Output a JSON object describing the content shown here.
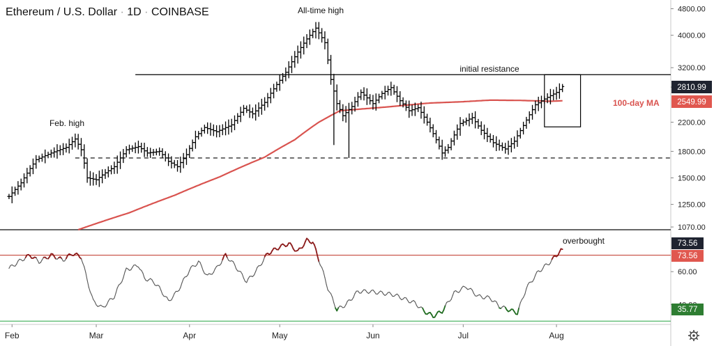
{
  "header": {
    "symbol": "Ethereum / U.S. Dollar",
    "interval": "1D",
    "exchange": "COINBASE"
  },
  "annotations": {
    "all_time_high": "All-time high",
    "feb_high": "Feb. high",
    "initial_resistance": "initial resistance",
    "ma_label": "100-day MA",
    "overbought": "overbought"
  },
  "colors": {
    "price_bars": "#000000",
    "ma_line": "#d9534f",
    "rsi_line": "#555555",
    "rsi_overbought_segment": "#8b1a1a",
    "rsi_oversold_segment": "#1f6b1f",
    "rsi_overbought_line": "#c0392b",
    "rsi_oversold_line": "#27a344",
    "last_price_tag": "#1f2330",
    "ma_tag": "#e0574f",
    "rsi_low_tag": "#2e7d32"
  },
  "settings_icon": "gear-icon",
  "chart_data": [
    {
      "type": "ohlc",
      "price_scale": "log",
      "y_ticks": [
        "4800.00",
        "4000.00",
        "3200.00",
        "2800.00",
        "2200.00",
        "1800.00",
        "1500.00",
        "1250.00",
        "1070.00"
      ],
      "y_tick_values": [
        4800,
        4000,
        3200,
        2800,
        2200,
        1800,
        1500,
        1250,
        1070
      ],
      "ylim": [
        1050,
        5000
      ],
      "x_ticks": [
        "Feb",
        "Mar",
        "Apr",
        "May",
        "Jun",
        "Jul",
        "Aug"
      ],
      "x_tick_days": [
        1,
        29,
        60,
        90,
        121,
        151,
        182
      ],
      "xlim": [
        -3,
        220
      ],
      "resistance_level": 3050,
      "support_level": 1720,
      "box": {
        "x_from": 178,
        "x_to": 190,
        "y_from": 2130,
        "y_to": 3050
      },
      "last_price": {
        "label": "2810.99",
        "value": 2810.99
      },
      "ma_value": {
        "label": "2549.99",
        "value": 2549.99
      },
      "price_anchors": [
        [
          0,
          1320
        ],
        [
          4,
          1450
        ],
        [
          9,
          1700
        ],
        [
          14,
          1780
        ],
        [
          19,
          1850
        ],
        [
          22,
          1960
        ],
        [
          24,
          1820
        ],
        [
          26,
          1500
        ],
        [
          29,
          1480
        ],
        [
          31,
          1530
        ],
        [
          35,
          1620
        ],
        [
          39,
          1820
        ],
        [
          43,
          1860
        ],
        [
          46,
          1780
        ],
        [
          50,
          1800
        ],
        [
          53,
          1680
        ],
        [
          56,
          1620
        ],
        [
          59,
          1760
        ],
        [
          62,
          1990
        ],
        [
          65,
          2120
        ],
        [
          69,
          2060
        ],
        [
          74,
          2160
        ],
        [
          78,
          2420
        ],
        [
          81,
          2330
        ],
        [
          85,
          2520
        ],
        [
          89,
          2850
        ],
        [
          92,
          3100
        ],
        [
          95,
          3450
        ],
        [
          99,
          3900
        ],
        [
          102,
          4200
        ],
        [
          105,
          3800
        ],
        [
          107,
          2950
        ],
        [
          109,
          2500
        ],
        [
          111,
          2300
        ],
        [
          114,
          2450
        ],
        [
          117,
          2700
        ],
        [
          121,
          2500
        ],
        [
          124,
          2680
        ],
        [
          127,
          2790
        ],
        [
          130,
          2550
        ],
        [
          133,
          2380
        ],
        [
          136,
          2430
        ],
        [
          139,
          2200
        ],
        [
          142,
          1950
        ],
        [
          144,
          1780
        ],
        [
          146,
          1850
        ],
        [
          150,
          2180
        ],
        [
          154,
          2270
        ],
        [
          157,
          2080
        ],
        [
          161,
          1910
        ],
        [
          165,
          1830
        ],
        [
          168,
          1930
        ],
        [
          171,
          2150
        ],
        [
          175,
          2480
        ],
        [
          178,
          2580
        ],
        [
          182,
          2700
        ],
        [
          184,
          2810
        ]
      ],
      "ma_anchors": [
        [
          23,
          1050
        ],
        [
          40,
          1180
        ],
        [
          55,
          1330
        ],
        [
          70,
          1510
        ],
        [
          85,
          1730
        ],
        [
          95,
          1950
        ],
        [
          103,
          2200
        ],
        [
          110,
          2380
        ],
        [
          125,
          2440
        ],
        [
          140,
          2510
        ],
        [
          150,
          2530
        ],
        [
          160,
          2560
        ],
        [
          170,
          2555
        ],
        [
          180,
          2540
        ],
        [
          184,
          2549
        ]
      ]
    },
    {
      "type": "line",
      "indicator": "RSI",
      "y_ticks": [
        "60.00",
        "40.00"
      ],
      "y_tick_values": [
        60,
        40
      ],
      "ylim": [
        28,
        85
      ],
      "overbought_level": 70,
      "oversold_level": 30,
      "last_value": {
        "label": "73.56",
        "value": 73.56
      },
      "low_value": {
        "label": "35.77",
        "value": 35.77
      },
      "rsi_anchors": [
        [
          0,
          62
        ],
        [
          4,
          67
        ],
        [
          7,
          70
        ],
        [
          10,
          66
        ],
        [
          14,
          70
        ],
        [
          18,
          67
        ],
        [
          21,
          71
        ],
        [
          24,
          69
        ],
        [
          26,
          55
        ],
        [
          28,
          42
        ],
        [
          31,
          38
        ],
        [
          35,
          45
        ],
        [
          39,
          61
        ],
        [
          43,
          64
        ],
        [
          45,
          56
        ],
        [
          48,
          54
        ],
        [
          50,
          50
        ],
        [
          53,
          42
        ],
        [
          56,
          48
        ],
        [
          60,
          61
        ],
        [
          63,
          66
        ],
        [
          66,
          57
        ],
        [
          69,
          62
        ],
        [
          72,
          70
        ],
        [
          75,
          64
        ],
        [
          79,
          54
        ],
        [
          82,
          60
        ],
        [
          86,
          71
        ],
        [
          90,
          75
        ],
        [
          93,
          77
        ],
        [
          96,
          72
        ],
        [
          99,
          79
        ],
        [
          101,
          78
        ],
        [
          104,
          62
        ],
        [
          106,
          50
        ],
        [
          109,
          37
        ],
        [
          112,
          40
        ],
        [
          116,
          48
        ],
        [
          120,
          48
        ],
        [
          124,
          47
        ],
        [
          128,
          46
        ],
        [
          132,
          43
        ],
        [
          135,
          41
        ],
        [
          138,
          36
        ],
        [
          141,
          33
        ],
        [
          144,
          36
        ],
        [
          148,
          47
        ],
        [
          152,
          51
        ],
        [
          156,
          45
        ],
        [
          160,
          44
        ],
        [
          163,
          39
        ],
        [
          166,
          37
        ],
        [
          169,
          35
        ],
        [
          172,
          50
        ],
        [
          176,
          60
        ],
        [
          180,
          66
        ],
        [
          183,
          72
        ],
        [
          184,
          73.56
        ]
      ]
    }
  ]
}
